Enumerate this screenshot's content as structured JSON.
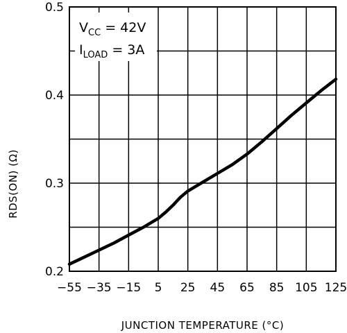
{
  "chart_data": {
    "type": "line",
    "title": "",
    "xlabel": "JUNCTION TEMPERATURE (°C)",
    "ylabel": "RDS(ON) (Ω)",
    "xlim": [
      -55,
      125
    ],
    "ylim": [
      0.2,
      0.5
    ],
    "x_ticks": [
      "-55",
      "-35",
      "-15",
      "5",
      "25",
      "45",
      "65",
      "85",
      "105",
      "125"
    ],
    "y_ticks": [
      "0.2",
      "0.3",
      "0.4",
      "0.5"
    ],
    "grid": true,
    "annotation": {
      "line1_main": "V",
      "line1_sub": "CC",
      "line1_rest": " = 42V",
      "line2_main": "I",
      "line2_sub": "LOAD",
      "line2_rest": " = 3A"
    },
    "series": [
      {
        "x": [
          -55,
          -45,
          -35,
          -25,
          -15,
          -5,
          5,
          10,
          15,
          20,
          25,
          35,
          45,
          55,
          65,
          75,
          85,
          95,
          105,
          115,
          125
        ],
        "y": [
          0.208,
          0.216,
          0.224,
          0.232,
          0.241,
          0.25,
          0.26,
          0.267,
          0.275,
          0.284,
          0.291,
          0.301,
          0.311,
          0.321,
          0.333,
          0.347,
          0.362,
          0.377,
          0.391,
          0.405,
          0.418
        ]
      }
    ]
  }
}
